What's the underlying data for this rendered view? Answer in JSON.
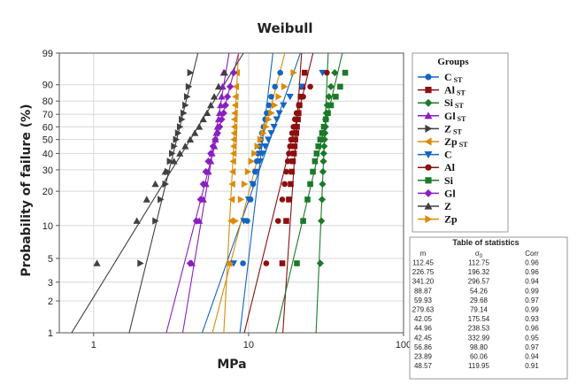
{
  "chart_data": {
    "type": "scatter",
    "title": "Weibull",
    "xlabel": "MPa",
    "ylabel": "Probability of failure (%)",
    "x_scale": "log",
    "y_scale": "weibull",
    "xlim": [
      0.6,
      100
    ],
    "ylim": [
      1,
      99
    ],
    "x_ticks": [
      1,
      10,
      100
    ],
    "x_tick_labels": [
      "1",
      "10",
      "100"
    ],
    "y_ticks": [
      1,
      2,
      3,
      5,
      10,
      20,
      30,
      40,
      50,
      60,
      70,
      80,
      90,
      99
    ],
    "y_tick_labels": [
      "1",
      "2",
      "3",
      "5",
      "10",
      "20",
      "30",
      "40",
      "50",
      "60",
      "70",
      "80",
      "90",
      "99"
    ],
    "grid": true,
    "legend": {
      "title": "Groups",
      "placement": "right",
      "entries": [
        {
          "main": "C",
          "sub": "ST"
        },
        {
          "main": "Al",
          "sub": "ST"
        },
        {
          "main": "Si",
          "sub": "ST"
        },
        {
          "main": "Gl",
          "sub": "ST"
        },
        {
          "main": "Z",
          "sub": "ST"
        },
        {
          "main": "Zp",
          "sub": "ST"
        },
        {
          "main": "C",
          "sub": ""
        },
        {
          "main": "Al",
          "sub": ""
        },
        {
          "main": "Si",
          "sub": ""
        },
        {
          "main": "Gl",
          "sub": ""
        },
        {
          "main": "Z",
          "sub": ""
        },
        {
          "main": "Zp",
          "sub": ""
        }
      ]
    },
    "probabilities": [
      4.5,
      11,
      17,
      23,
      29,
      35,
      40,
      45,
      50,
      55,
      60,
      66,
      71,
      77,
      83,
      89,
      95
    ],
    "series": [
      {
        "color": "#1565c0",
        "marker": "circle",
        "values": [
          9.2,
          9.8,
          10.3,
          10.7,
          11.0,
          11.3,
          11.5,
          11.8,
          12.0,
          12.2,
          12.5,
          12.8,
          13.1,
          13.5,
          14.0,
          14.8,
          16.0
        ]
      },
      {
        "color": "#8b1010",
        "marker": "square",
        "values": [
          16.5,
          17.5,
          18.2,
          18.7,
          19.0,
          19.3,
          19.6,
          19.8,
          20.0,
          20.3,
          20.5,
          20.8,
          21.0,
          21.3,
          21.7,
          22.3,
          23.0
        ]
      },
      {
        "color": "#1b7a2a",
        "marker": "diamond",
        "values": [
          29.0,
          29.5,
          29.8,
          30.0,
          30.2,
          30.4,
          30.5,
          30.7,
          30.9,
          31.1,
          31.3,
          31.5,
          31.8,
          32.2,
          33.0,
          34.0,
          36.0
        ]
      },
      {
        "color": "#8a1fc0",
        "marker": "triangle",
        "values": [
          4.3,
          4.8,
          5.1,
          5.3,
          5.5,
          5.7,
          5.8,
          6.0,
          6.1,
          6.2,
          6.3,
          6.4,
          6.5,
          6.6,
          6.7,
          6.8,
          6.9
        ]
      },
      {
        "color": "#404040",
        "marker": "tri-right",
        "values": [
          2.0,
          2.5,
          2.7,
          2.9,
          3.0,
          3.1,
          3.2,
          3.3,
          3.4,
          3.5,
          3.6,
          3.7,
          3.8,
          3.9,
          4.0,
          4.1,
          4.2
        ]
      },
      {
        "color": "#d98c0a",
        "marker": "tri-left",
        "values": [
          7.5,
          7.7,
          7.8,
          7.85,
          7.9,
          7.95,
          8.0,
          8.02,
          8.05,
          8.08,
          8.1,
          8.12,
          8.15,
          8.2,
          8.25,
          8.3,
          8.4
        ]
      },
      {
        "color": "#1565c0",
        "marker": "tri-down",
        "values": [
          8.0,
          9.3,
          10.0,
          10.6,
          11.2,
          11.8,
          12.3,
          12.8,
          13.4,
          14.0,
          14.6,
          15.2,
          15.8,
          16.8,
          18.5,
          22.0,
          30.0
        ]
      },
      {
        "color": "#8b1010",
        "marker": "circle",
        "values": [
          13.0,
          15.5,
          16.5,
          17.1,
          17.5,
          17.9,
          18.2,
          18.5,
          18.8,
          19.1,
          19.5,
          19.9,
          20.4,
          21.1,
          22.5,
          25.0,
          32.0
        ]
      },
      {
        "color": "#1b7a2a",
        "marker": "square",
        "values": [
          20.5,
          22.5,
          24.0,
          25.0,
          26.0,
          26.8,
          27.5,
          28.2,
          29.0,
          29.8,
          30.6,
          31.5,
          32.5,
          34.0,
          36.5,
          39.0,
          42.0
        ]
      },
      {
        "color": "#8a1fc0",
        "marker": "diamond",
        "values": [
          4.2,
          4.6,
          4.9,
          5.1,
          5.3,
          5.5,
          5.7,
          5.9,
          6.1,
          6.3,
          6.5,
          6.7,
          6.9,
          7.1,
          7.3,
          7.6,
          8.0
        ]
      },
      {
        "color": "#404040",
        "marker": "triangle",
        "values": [
          1.05,
          1.9,
          2.2,
          2.5,
          2.9,
          3.3,
          3.6,
          3.9,
          4.2,
          4.5,
          4.8,
          5.1,
          5.4,
          5.7,
          6.0,
          6.4,
          7.0
        ]
      },
      {
        "color": "#d98c0a",
        "marker": "tri-right",
        "values": [
          7.6,
          8.2,
          8.9,
          9.4,
          9.9,
          10.4,
          10.9,
          11.4,
          11.9,
          12.4,
          12.9,
          13.4,
          14.0,
          14.7,
          15.6,
          17.0,
          19.5
        ]
      }
    ],
    "fits": [
      {
        "color": "#1565c0",
        "m": 12.5,
        "scale": 12.7
      },
      {
        "color": "#8b1010",
        "m": 22.0,
        "scale": 20.5
      },
      {
        "color": "#1b7a2a",
        "m": 34.0,
        "scale": 31.2
      },
      {
        "color": "#8a1fc0",
        "m": 8.9,
        "scale": 6.3
      },
      {
        "color": "#404040",
        "m": 6.0,
        "scale": 3.65
      },
      {
        "color": "#d98c0a",
        "m": 28.0,
        "scale": 8.15
      },
      {
        "color": "#1565c0",
        "m": 4.2,
        "scale": 15.0
      },
      {
        "color": "#8b1010",
        "m": 6.0,
        "scale": 20.2
      },
      {
        "color": "#1b7a2a",
        "m": 6.2,
        "scale": 31.5
      },
      {
        "color": "#8a1fc0",
        "m": 5.7,
        "scale": 6.6
      },
      {
        "color": "#404040",
        "m": 2.4,
        "scale": 4.9
      },
      {
        "color": "#d98c0a",
        "m": 5.7,
        "scale": 13.1
      }
    ],
    "statistics_table": {
      "title": "Table of statistics",
      "headers": [
        "m",
        "σ0",
        "Corr"
      ],
      "rows": [
        [
          "112.45",
          "112.75",
          "0.96"
        ],
        [
          "226.75",
          "196.32",
          "0.96"
        ],
        [
          "341.20",
          "296.57",
          "0.94"
        ],
        [
          "88.87",
          "54.26",
          "0.99"
        ],
        [
          "59.93",
          "29.68",
          "0.97"
        ],
        [
          "279.63",
          "79.14",
          "0.99"
        ],
        [
          "42.05",
          "175.54",
          "0.93"
        ],
        [
          "44.96",
          "238.53",
          "0.96"
        ],
        [
          "42.45",
          "332.99",
          "0.95"
        ],
        [
          "56.86",
          "98.80",
          "0.97"
        ],
        [
          "23.89",
          "60.06",
          "0.94"
        ],
        [
          "48.57",
          "119.95",
          "0.91"
        ]
      ]
    }
  }
}
